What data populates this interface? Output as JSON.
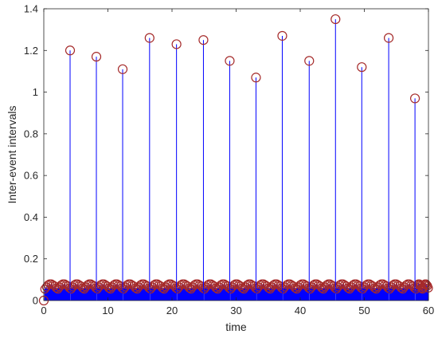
{
  "chart_data": {
    "type": "scatter",
    "xlabel": "time",
    "ylabel": "Inter-event intervals",
    "xlim": [
      0,
      60
    ],
    "ylim": [
      0,
      1.4
    ],
    "xticks": [
      0,
      10,
      20,
      30,
      40,
      50,
      60
    ],
    "yticks": [
      0,
      0.2,
      0.4,
      0.6,
      0.8,
      1,
      1.2,
      1.4
    ],
    "xtick_labels": [
      "0",
      "10",
      "20",
      "30",
      "40",
      "50",
      "60"
    ],
    "ytick_labels": [
      "0",
      "0.2",
      "0.4",
      "0.6",
      "0.8",
      "1",
      "1.2",
      "1.4"
    ],
    "grid": false,
    "marker": "circle",
    "marker_color": "#a52a2a",
    "stem_color": "#0000ff",
    "fill_color": "#0000ff",
    "long_intervals": {
      "x": [
        4.1,
        8.2,
        12.3,
        16.5,
        20.7,
        24.9,
        29.0,
        33.1,
        37.2,
        41.4,
        45.5,
        49.6,
        53.8,
        57.9
      ],
      "y": [
        1.2,
        1.17,
        1.11,
        1.26,
        1.23,
        1.25,
        1.15,
        1.07,
        1.27,
        1.15,
        1.35,
        1.12,
        1.26,
        0.97
      ]
    },
    "short_intervals": {
      "bursts": [
        {
          "start": 0.15,
          "end": 4.0
        },
        {
          "start": 4.25,
          "end": 8.1
        },
        {
          "start": 8.35,
          "end": 12.2
        },
        {
          "start": 12.45,
          "end": 16.4
        },
        {
          "start": 16.65,
          "end": 20.6
        },
        {
          "start": 20.85,
          "end": 24.8
        },
        {
          "start": 25.05,
          "end": 28.9
        },
        {
          "start": 29.15,
          "end": 33.0
        },
        {
          "start": 33.25,
          "end": 37.1
        },
        {
          "start": 37.35,
          "end": 41.3
        },
        {
          "start": 41.55,
          "end": 45.4
        },
        {
          "start": 45.65,
          "end": 49.5
        },
        {
          "start": 49.75,
          "end": 53.7
        },
        {
          "start": 53.95,
          "end": 57.8
        },
        {
          "start": 58.05,
          "end": 60.0
        }
      ],
      "y_values": [
        0.055,
        0.065,
        0.075,
        0.08,
        0.08,
        0.075,
        0.07,
        0.06
      ]
    },
    "origin_point": {
      "x": 0,
      "y": 0
    }
  }
}
